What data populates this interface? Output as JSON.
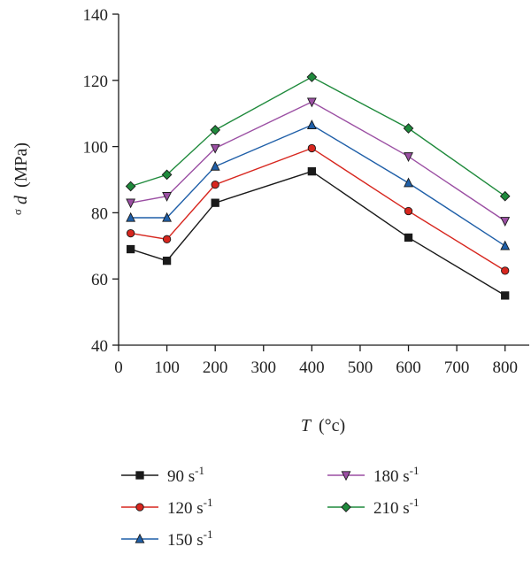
{
  "chart_data": {
    "type": "line",
    "title": "",
    "xlabel": "T (°c)",
    "xlabel_var": "T",
    "xlabel_unit": "(°c)",
    "ylabel": "σd (MPa)",
    "ylabel_sigma": "σ",
    "ylabel_var": "d",
    "ylabel_unit": "(MPa)",
    "xlim": [
      0,
      850
    ],
    "ylim": [
      40,
      140
    ],
    "xticks": [
      0,
      100,
      200,
      300,
      400,
      500,
      600,
      700,
      800
    ],
    "yticks": [
      40,
      60,
      80,
      100,
      120,
      140
    ],
    "grid": false,
    "legend_position": "bottom",
    "x": [
      25,
      100,
      200,
      400,
      600,
      800
    ],
    "series": [
      {
        "name": "90 s",
        "sup": "-1",
        "color": "#1a1a1a",
        "marker": "square",
        "values": [
          69,
          65.5,
          83,
          92.5,
          72.5,
          55
        ]
      },
      {
        "name": "120 s",
        "sup": "-1",
        "color": "#d7261e",
        "marker": "circle",
        "values": [
          73.8,
          72,
          88.5,
          99.5,
          80.5,
          62.5
        ]
      },
      {
        "name": "150 s",
        "sup": "-1",
        "color": "#1f5fa8",
        "marker": "triangle-up",
        "values": [
          78.5,
          78.5,
          94,
          106.5,
          89,
          70
        ]
      },
      {
        "name": "180 s",
        "sup": "-1",
        "color": "#9b4fa3",
        "marker": "triangle-down",
        "values": [
          83,
          85,
          99.5,
          113.5,
          97,
          77.5
        ]
      },
      {
        "name": "210 s",
        "sup": "-1",
        "color": "#1f8a3c",
        "marker": "diamond",
        "values": [
          88,
          91.5,
          105,
          121,
          105.5,
          85
        ]
      }
    ]
  }
}
